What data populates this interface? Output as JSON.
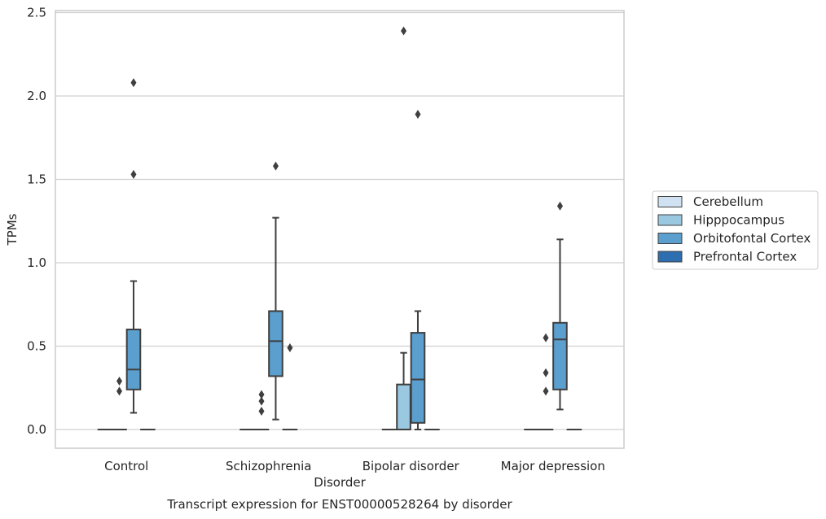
{
  "chart_data": {
    "type": "box",
    "caption": "Transcript expression for ENST00000528264 by disorder",
    "xlabel": "Disorder",
    "ylabel": "TPMs",
    "ylim": [
      -0.115,
      2.52
    ],
    "yticks": [
      0.0,
      0.5,
      1.0,
      1.5,
      2.0,
      2.5
    ],
    "ytick_labels": [
      "0.0",
      "0.5",
      "1.0",
      "1.5",
      "2.0",
      "2.5"
    ],
    "grid": "horizontal",
    "legend_position": "right",
    "categories": [
      "Control",
      "Schizophrenia",
      "Bipolar disorder",
      "Major depression"
    ],
    "series": [
      {
        "name": "Cerebellum",
        "color": "#d0e1f2",
        "boxes": [
          {
            "q1": 0,
            "median": 0,
            "q3": 0,
            "whisker_low": 0,
            "whisker_high": 0,
            "outliers": []
          },
          {
            "q1": 0,
            "median": 0,
            "q3": 0,
            "whisker_low": 0,
            "whisker_high": 0,
            "outliers": []
          },
          {
            "q1": 0,
            "median": 0,
            "q3": 0,
            "whisker_low": 0,
            "whisker_high": 0,
            "outliers": []
          },
          {
            "q1": 0,
            "median": 0,
            "q3": 0,
            "whisker_low": 0,
            "whisker_high": 0,
            "outliers": []
          }
        ]
      },
      {
        "name": "Hipppocampus",
        "color": "#9ac8e0",
        "boxes": [
          {
            "q1": 0,
            "median": 0,
            "q3": 0,
            "whisker_low": 0,
            "whisker_high": 0,
            "outliers": [
              0.23,
              0.29
            ]
          },
          {
            "q1": 0,
            "median": 0,
            "q3": 0,
            "whisker_low": 0,
            "whisker_high": 0,
            "outliers": [
              0.11,
              0.17,
              0.21
            ]
          },
          {
            "q1": 0,
            "median": 0,
            "q3": 0.27,
            "whisker_low": 0,
            "whisker_high": 0.46,
            "outliers": [
              2.39
            ]
          },
          {
            "q1": 0,
            "median": 0,
            "q3": 0,
            "whisker_low": 0,
            "whisker_high": 0,
            "outliers": [
              0.23,
              0.34,
              0.55
            ]
          }
        ]
      },
      {
        "name": "Orbitofontal Cortex",
        "color": "#5a9fce",
        "boxes": [
          {
            "q1": 0.24,
            "median": 0.36,
            "q3": 0.6,
            "whisker_low": 0.1,
            "whisker_high": 0.89,
            "outliers": [
              1.53,
              2.08
            ]
          },
          {
            "q1": 0.32,
            "median": 0.53,
            "q3": 0.71,
            "whisker_low": 0.06,
            "whisker_high": 1.27,
            "outliers": [
              1.58
            ]
          },
          {
            "q1": 0.04,
            "median": 0.3,
            "q3": 0.58,
            "whisker_low": 0.0,
            "whisker_high": 0.71,
            "outliers": [
              1.89
            ]
          },
          {
            "q1": 0.24,
            "median": 0.54,
            "q3": 0.64,
            "whisker_low": 0.12,
            "whisker_high": 1.14,
            "outliers": [
              1.34
            ]
          }
        ]
      },
      {
        "name": "Prefrontal Cortex",
        "color": "#2c6eaf",
        "boxes": [
          {
            "q1": 0,
            "median": 0,
            "q3": 0,
            "whisker_low": 0,
            "whisker_high": 0,
            "outliers": []
          },
          {
            "q1": 0,
            "median": 0,
            "q3": 0,
            "whisker_low": 0,
            "whisker_high": 0,
            "outliers": [
              0.49
            ]
          },
          {
            "q1": 0,
            "median": 0,
            "q3": 0,
            "whisker_low": 0,
            "whisker_high": 0,
            "outliers": []
          },
          {
            "q1": 0,
            "median": 0,
            "q3": 0,
            "whisker_low": 0,
            "whisker_high": 0,
            "outliers": []
          }
        ]
      }
    ]
  }
}
